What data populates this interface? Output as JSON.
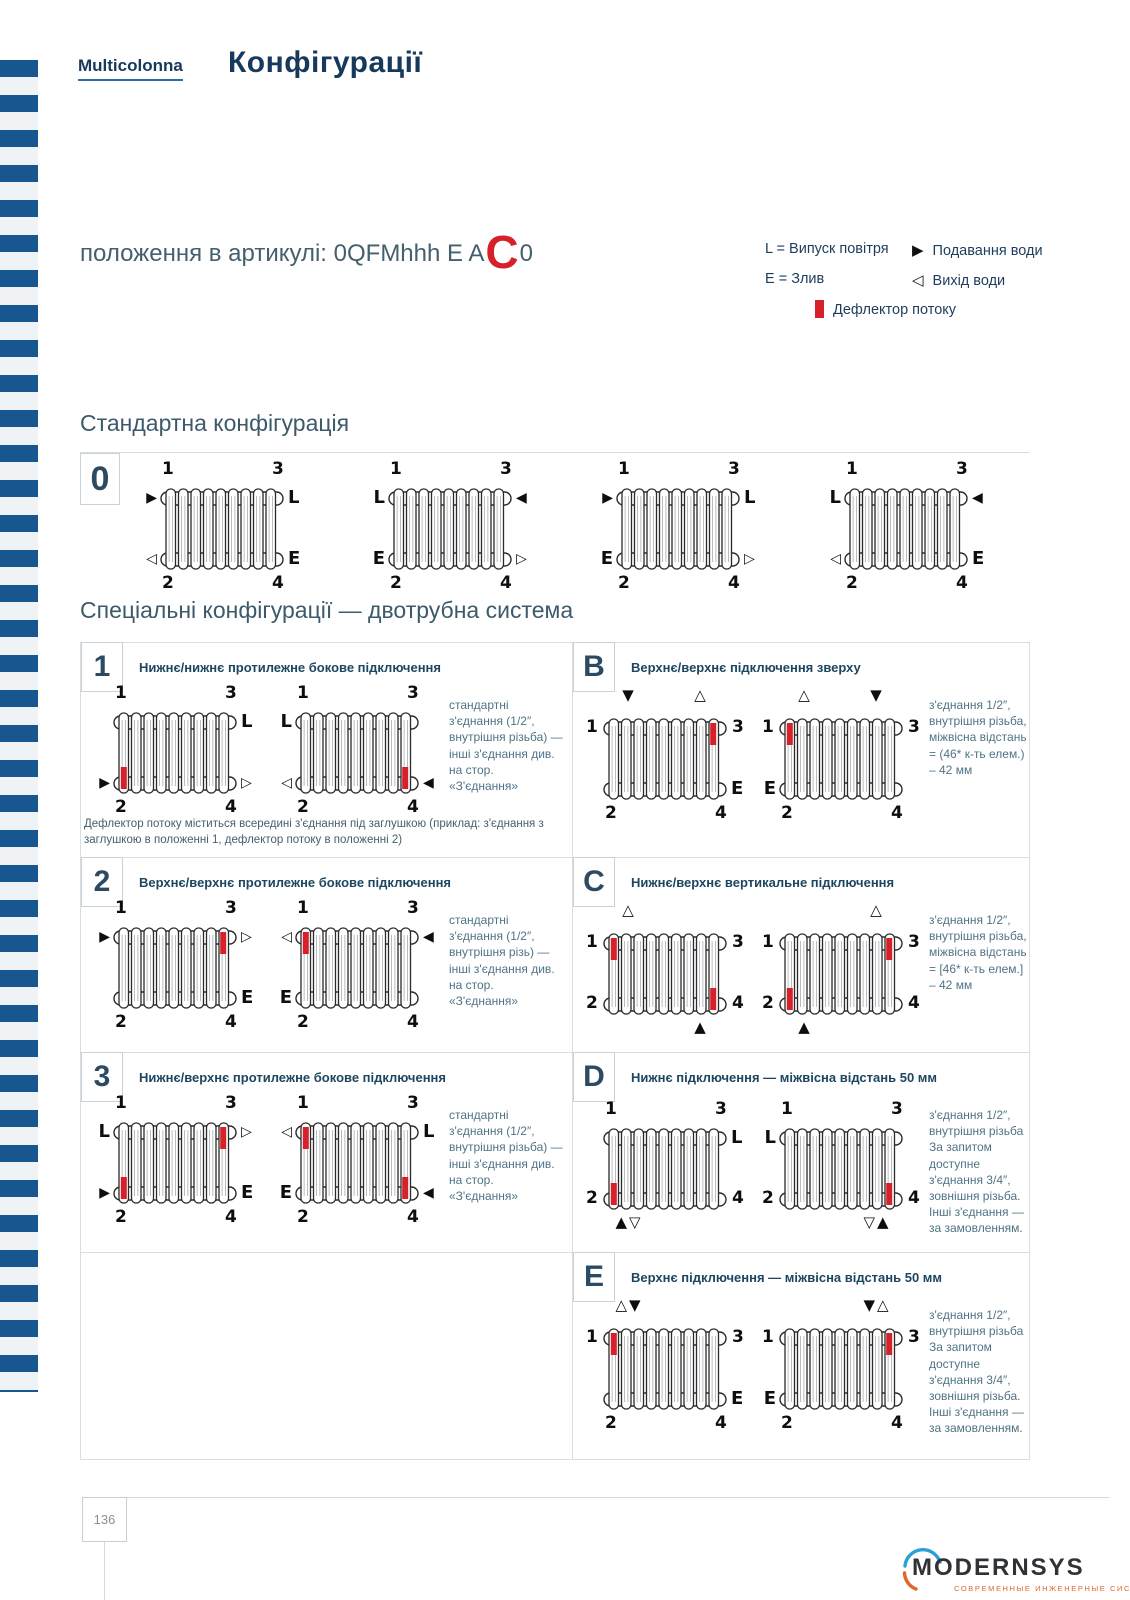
{
  "page": {
    "brand": "Multicolonna",
    "title": "Конфігурації",
    "article_line": {
      "prefix": "положення в артикулі: 0QFMhhh E A",
      "highlight": "C",
      "suffix": "0"
    },
    "page_number": "136"
  },
  "legend": {
    "l": "L = Випуск повітря",
    "e": "E = Злив",
    "supply_icon": "▶",
    "supply": "Подавання води",
    "outlet_icon": "◁",
    "outlet": "Вихід води",
    "deflector": "Дефлектор потоку"
  },
  "sections": {
    "standard": "Стандартна конфігурація",
    "special": "Спеціальні конфігурації — двотрубна система"
  },
  "diagram_corners": [
    "1",
    "3",
    "2",
    "4"
  ],
  "standard_row": {
    "badge": "0",
    "diagrams": [
      {
        "nums": "vvvv",
        "s_tl": "▶",
        "s_tr": "L",
        "s_bl": "◁",
        "s_br": "E"
      },
      {
        "nums": "vvvv",
        "s_tl": "L",
        "s_tr": "◀",
        "s_bl": "E",
        "s_br": "▷"
      },
      {
        "nums": "vvvv",
        "s_tl": "▶",
        "s_tr": "L",
        "s_bl": "E",
        "s_br": "▷"
      },
      {
        "nums": "vvvv",
        "s_tl": "L",
        "s_tr": "◀",
        "s_bl": "◁",
        "s_br": "E"
      }
    ]
  },
  "special_rows": [
    {
      "badge": "1",
      "column": "left",
      "band": 0,
      "title": "Нижнє/нижнє протилежне бокове підключення",
      "side_text": "стандартні з'єднання (1/2″, внутрішня різьба) — інші з'єднання див. на стор. «З'єднання»",
      "note": "Дефлектор потоку міститься всередині з'єднання під заглушкою (приклад: з'єднання з заглушкою в положенні 1, дефлектор потоку в положенні 2)",
      "diagrams": [
        {
          "nums": "vvvv",
          "s_tr": "L",
          "s_bl": "▶",
          "s_br": "▷",
          "defl": [
            "bl"
          ]
        },
        {
          "nums": "vvvv",
          "s_tl": "L",
          "s_bl": "◁",
          "s_br": "◀",
          "defl": [
            "br"
          ]
        }
      ]
    },
    {
      "badge": "B",
      "column": "right",
      "band": 0,
      "title": "Верхнє/верхнє підключення зверху",
      "side_text": "з'єднання 1/2″, внутрішня різьба, міжвісна відстань = (46* к-ть елем.) – 42 мм",
      "diagrams": [
        {
          "nums": "ssvv",
          "v_tl": "▼",
          "v_tr": "△",
          "s_br": "E",
          "defl": [
            "tr"
          ]
        },
        {
          "nums": "ssvv",
          "v_tl": "△",
          "v_tr": "▼",
          "s_bl": "E",
          "defl": [
            "tl"
          ]
        }
      ]
    },
    {
      "badge": "2",
      "column": "left",
      "band": 1,
      "title": "Верхнє/верхнє протилежне бокове підключення",
      "side_text": "стандартні з'єднання (1/2″, внутрішня різь) — інші з'єднання див. на стор. «З'єднання»",
      "diagrams": [
        {
          "nums": "vvvv",
          "s_tl": "▶",
          "s_tr": "▷",
          "s_br": "E",
          "defl": [
            "tr"
          ]
        },
        {
          "nums": "vvvv",
          "s_tl": "◁",
          "s_tr": "◀",
          "s_bl": "E",
          "defl": [
            "tl"
          ]
        }
      ]
    },
    {
      "badge": "C",
      "column": "right",
      "band": 1,
      "title": "Нижнє/верхнє вертикальне підключення",
      "side_text": "з'єднання 1/2″, внутрішня різьба, міжвісна відстань = [46* к-ть елем.] – 42 мм",
      "diagrams": [
        {
          "nums": "ssss",
          "v_tl": "△",
          "v_br": "▲",
          "defl": [
            "tl",
            "br"
          ]
        },
        {
          "nums": "ssss",
          "v_tr": "△",
          "v_bl": "▲",
          "defl": [
            "tr",
            "bl"
          ]
        }
      ]
    },
    {
      "badge": "3",
      "column": "left",
      "band": 2,
      "title": "Нижнє/верхнє протилежне бокове підключення",
      "side_text": "стандартні з'єднання (1/2″, внутрішня різьба) — інші з'єднання див. на стор. «З'єднання»",
      "diagrams": [
        {
          "nums": "vvvv",
          "s_tl": "L",
          "s_tr": "▷",
          "s_bl": "▶",
          "s_br": "E",
          "defl": [
            "tr",
            "bl"
          ]
        },
        {
          "nums": "vvvv",
          "s_tl": "◁",
          "s_tr": "L",
          "s_bl": "E",
          "s_br": "◀",
          "defl": [
            "tl",
            "br"
          ]
        }
      ]
    },
    {
      "badge": "D",
      "column": "right",
      "band": 2,
      "title": "Нижнє підключення — міжвісна відстань 50 мм",
      "side_text": "з'єднання 1/2″, внутрішня різьба За запитом доступне з'єднання 3/4″, зовнішня різьба. Інші з'єднання — за замовленням.",
      "diagrams": [
        {
          "nums": "vvss",
          "s_tr": "L",
          "v_bl": "▲▽",
          "defl": [
            "bl"
          ]
        },
        {
          "nums": "vvss",
          "s_tl": "L",
          "v_br": "▽▲",
          "defl": [
            "br"
          ]
        }
      ]
    },
    {
      "badge": "E",
      "column": "right",
      "band": 3,
      "title": "Верхнє підключення — міжвісна відстань 50 мм",
      "side_text": "з'єднання 1/2″, внутрішня різьба За запитом доступне з'єднання 3/4″, зовнішня різьба. Інші з'єднання — за замовленням.",
      "diagrams": [
        {
          "nums": "ssvv",
          "v_tl": "△▼",
          "s_br": "E",
          "defl": [
            "tl"
          ]
        },
        {
          "nums": "ssvv",
          "v_tr": "▼△",
          "s_bl": "E",
          "defl": [
            "tr"
          ]
        }
      ]
    }
  ],
  "footer": {
    "logo_text": "MODERNSYS",
    "logo_tagline": "СОВРЕМЕННЫЕ ИНЖЕНЕРНЫЕ СИСТЕМЫ"
  },
  "colors": {
    "accent_red": "#d6202a",
    "stripe_blue": "#17568f",
    "navy": "#16395c"
  }
}
